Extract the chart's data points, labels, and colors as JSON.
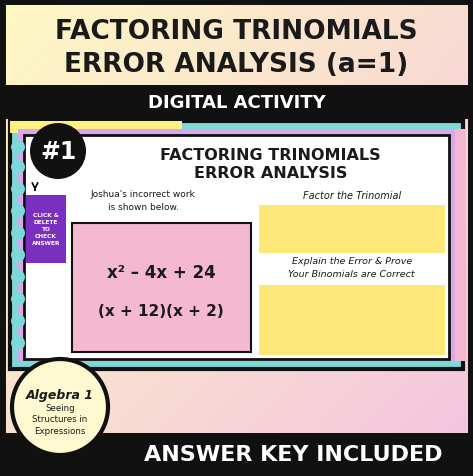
{
  "bg_gradient_top": "#fef9c3",
  "bg_gradient_bottom": "#f4c6e0",
  "title_line1": "FACTORING TRINOMIALS",
  "title_line2": "ERROR ANALYSIS (a=1)",
  "title_color": "#1a1a1a",
  "black_bar_text": "DIGITAL ACTIVITY",
  "black_bar_color": "#111111",
  "black_bar_text_color": "#ffffff",
  "outer_border_color": "#111111",
  "slide_outer_teal": "#7dd8d8",
  "slide_outer_yellow": "#fef080",
  "slide_outer_purple": "#d8a8e8",
  "slide_outer_pink": "#f4b8d0",
  "slide_bg": "#ffffff",
  "slide_inner_title1": "FACTORING TRINOMIALS",
  "slide_inner_title2": "ERROR ANALYSIS",
  "slide_number_bg": "#111111",
  "slide_number_text": "#1",
  "click_box_bg": "#7b2fbe",
  "click_box_text": "CLICK &\nDELETE\nTO\nCHECK\nANSWER",
  "joshua_text": "Joshua's incorrect work\nis shown below.",
  "pink_box_bg": "#f4b8d0",
  "math_line1": "x² – 4x + 24",
  "math_line2": "(x + 12)(x + 2)",
  "factor_label": "Factor the Trinomial",
  "yellow_box_color": "#fde87a",
  "explain_label": "Explain the Error & Prove\nYour Binomials are Correct",
  "algebra_circle_bg": "#fef9d0",
  "algebra_circle_border": "#111111",
  "algebra_text1": "Algebra 1",
  "algebra_text2": "Seeing\nStructures in\nExpressions",
  "bottom_bar_bg": "#111111",
  "bottom_bar_text": "ANSWER KEY INCLUDED",
  "bottom_bar_text_color": "#ffffff",
  "figwidth": 4.73,
  "figheight": 4.77,
  "dpi": 100
}
